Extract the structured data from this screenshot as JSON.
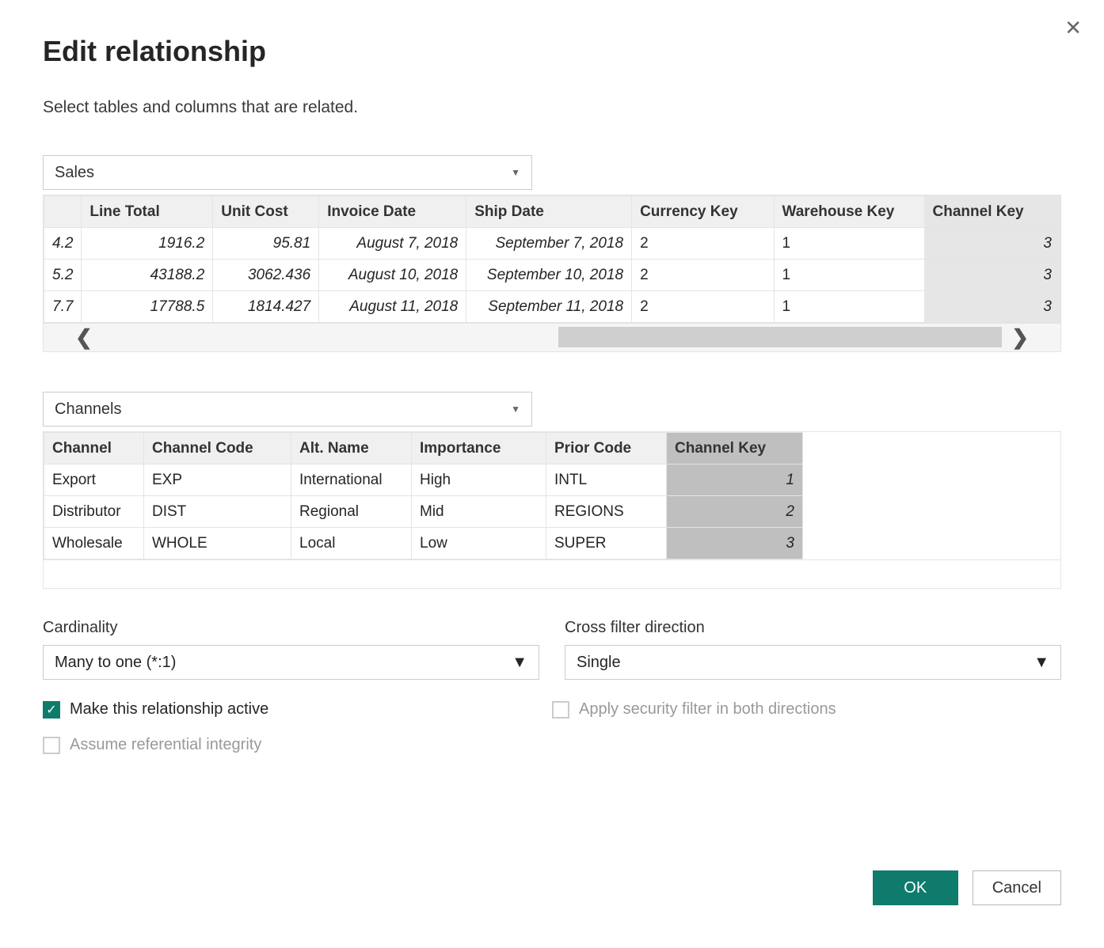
{
  "dialog": {
    "title": "Edit relationship",
    "subtitle": "Select tables and columns that are related."
  },
  "table1": {
    "selected": "Sales",
    "columns": [
      "",
      "Line Total",
      "Unit Cost",
      "Invoice Date",
      "Ship Date",
      "Currency Key",
      "Warehouse Key",
      "Channel Key"
    ],
    "selected_col_index": 7,
    "rows": [
      [
        "4.2",
        "1916.2",
        "95.81",
        "August 7, 2018",
        "September 7, 2018",
        "2",
        "1",
        "3"
      ],
      [
        "5.2",
        "43188.2",
        "3062.436",
        "August 10, 2018",
        "September 10, 2018",
        "2",
        "1",
        "3"
      ],
      [
        "7.7",
        "17788.5",
        "1814.427",
        "August 11, 2018",
        "September 11, 2018",
        "2",
        "1",
        "3"
      ]
    ],
    "italic_cols": [
      0,
      1,
      2,
      3,
      4
    ],
    "ralign_cols": [
      0,
      1,
      2,
      3,
      4,
      7
    ]
  },
  "table2": {
    "selected": "Channels",
    "columns": [
      "Channel",
      "Channel Code",
      "Alt. Name",
      "Importance",
      "Prior Code",
      "Channel Key"
    ],
    "selected_col_index": 5,
    "rows": [
      [
        "Export",
        "EXP",
        "International",
        "High",
        "INTL",
        "1"
      ],
      [
        "Distributor",
        "DIST",
        "Regional",
        "Mid",
        "REGIONS",
        "2"
      ],
      [
        "Wholesale",
        "WHOLE",
        "Local",
        "Low",
        "SUPER",
        "3"
      ]
    ],
    "ralign_cols": [
      5
    ]
  },
  "options": {
    "cardinality_label": "Cardinality",
    "cardinality_value": "Many to one (*:1)",
    "crossfilter_label": "Cross filter direction",
    "crossfilter_value": "Single"
  },
  "checkboxes": {
    "active": {
      "label": "Make this relationship active",
      "checked": true,
      "disabled": false
    },
    "referential": {
      "label": "Assume referential integrity",
      "checked": false,
      "disabled": true
    },
    "security": {
      "label": "Apply security filter in both directions",
      "checked": false,
      "disabled": true
    }
  },
  "buttons": {
    "ok": "OK",
    "cancel": "Cancel"
  },
  "colors": {
    "accent": "#0f7b6c",
    "header_bg": "#f0f0f0",
    "sel_light": "#e6e6e6",
    "sel_dark": "#bfbfbf",
    "border": "#e4e4e4"
  }
}
